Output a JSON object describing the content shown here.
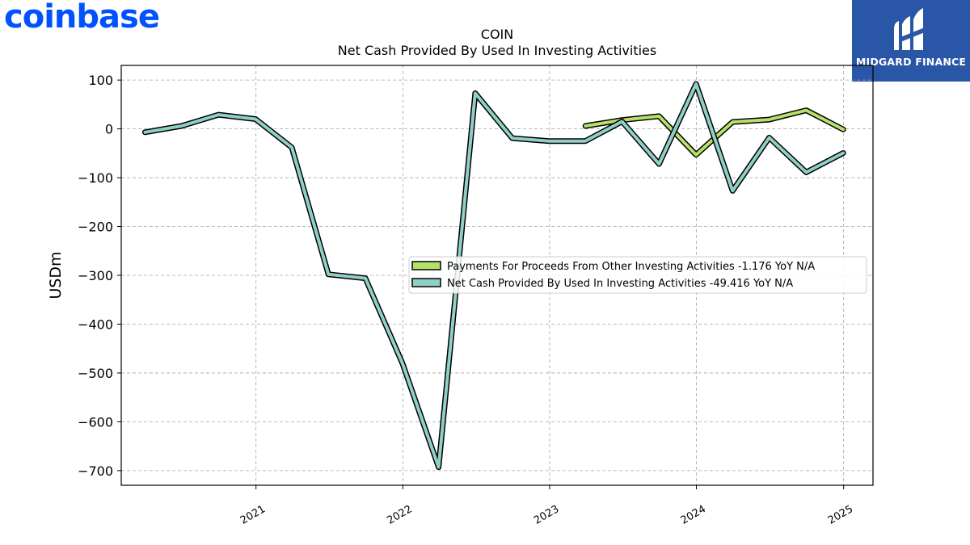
{
  "brand": {
    "logo_text": "coinbase",
    "logo_color": "#0052ff"
  },
  "badge": {
    "text": "MIDGARD FINANCE",
    "background": "#2a56a8"
  },
  "chart_data": {
    "type": "line",
    "title": "COIN",
    "subtitle": "Net Cash Provided By Used In Investing Activities",
    "xlabel": "",
    "ylabel": "USDm",
    "xlim": [
      "2020-02-01",
      "2025-03-15"
    ],
    "ylim": [
      -730,
      130
    ],
    "y_ticks": [
      100,
      0,
      -100,
      -200,
      -300,
      -400,
      -500,
      -600,
      -700
    ],
    "y_tick_labels": [
      "100",
      "0",
      "−100",
      "−200",
      "−300",
      "−400",
      "−500",
      "−600",
      "−700"
    ],
    "x_ticks": [
      "2021-01-01",
      "2022-01-01",
      "2023-01-01",
      "2024-01-01",
      "2025-01-01"
    ],
    "x_tick_labels": [
      "2021",
      "2022",
      "2023",
      "2024",
      "2025"
    ],
    "grid": true,
    "legend_position": "center-right",
    "series": [
      {
        "name": "Payments For Proceeds From Other Investing Activities  -1.176 YoY N/A",
        "color": "#b5e06b",
        "x": [
          "2023-03-31",
          "2023-06-30",
          "2023-09-30",
          "2023-12-31",
          "2024-03-31",
          "2024-06-30",
          "2024-09-30",
          "2024-12-31"
        ],
        "y": [
          6,
          18,
          26,
          -53,
          14,
          19,
          38,
          -1.176
        ]
      },
      {
        "name": "Net Cash Provided By Used In Investing Activities  -49.416 YoY N/A",
        "color": "#8fd0c6",
        "x": [
          "2020-03-31",
          "2020-06-30",
          "2020-09-30",
          "2020-12-31",
          "2021-03-31",
          "2021-06-30",
          "2021-09-30",
          "2021-12-31",
          "2022-03-31",
          "2022-06-30",
          "2022-09-30",
          "2022-12-31",
          "2023-03-31",
          "2023-06-30",
          "2023-09-30",
          "2023-12-31",
          "2024-03-31",
          "2024-06-30",
          "2024-09-30",
          "2024-12-31"
        ],
        "y": [
          -7,
          6,
          29,
          20,
          -38,
          -298,
          -306,
          -480,
          -693,
          73,
          -19,
          -25,
          -25,
          15,
          -72,
          92,
          -127,
          -18,
          -89,
          -49.416
        ]
      }
    ]
  }
}
